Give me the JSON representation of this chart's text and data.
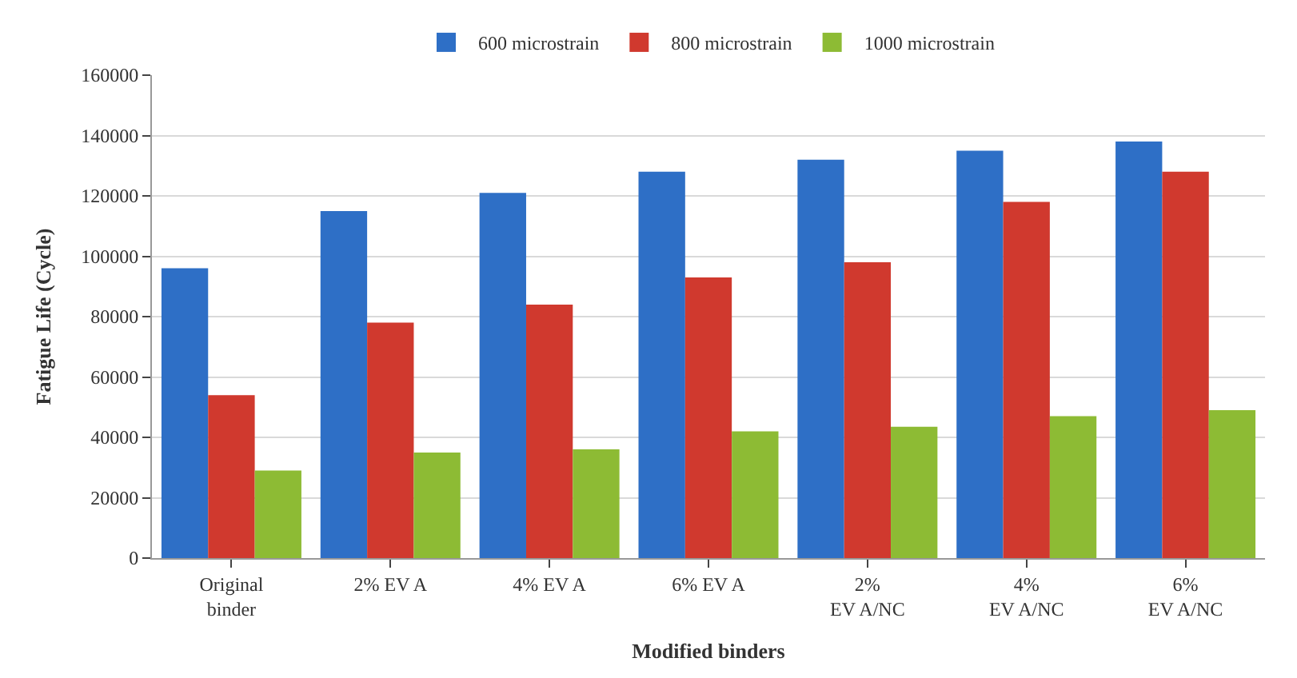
{
  "chart_data": {
    "type": "bar",
    "xlabel": "Modified binders",
    "ylabel": "Fatigue Life (Cycle)",
    "categories": [
      "Original\nbinder",
      "2% EV A",
      "4% EV A",
      "6% EV A",
      "2%\nEV A/NC",
      "4%\nEV A/NC",
      "6%\nEV A/NC"
    ],
    "series": [
      {
        "name": "600 microstrain",
        "color": "#2e6fc6",
        "values": [
          96000,
          115000,
          121000,
          128000,
          132000,
          135000,
          138000
        ]
      },
      {
        "name": "800 microstrain",
        "color": "#d0392e",
        "values": [
          54000,
          78000,
          84000,
          93000,
          98000,
          118000,
          128000
        ]
      },
      {
        "name": "1000 microstrain",
        "color": "#8dbb34",
        "values": [
          29000,
          35000,
          36000,
          42000,
          43500,
          47000,
          49000
        ]
      }
    ],
    "ylim": [
      0,
      160000
    ],
    "yticks": [
      0,
      20000,
      40000,
      60000,
      80000,
      100000,
      120000,
      140000,
      160000
    ],
    "grid": "y",
    "legend": "top"
  }
}
